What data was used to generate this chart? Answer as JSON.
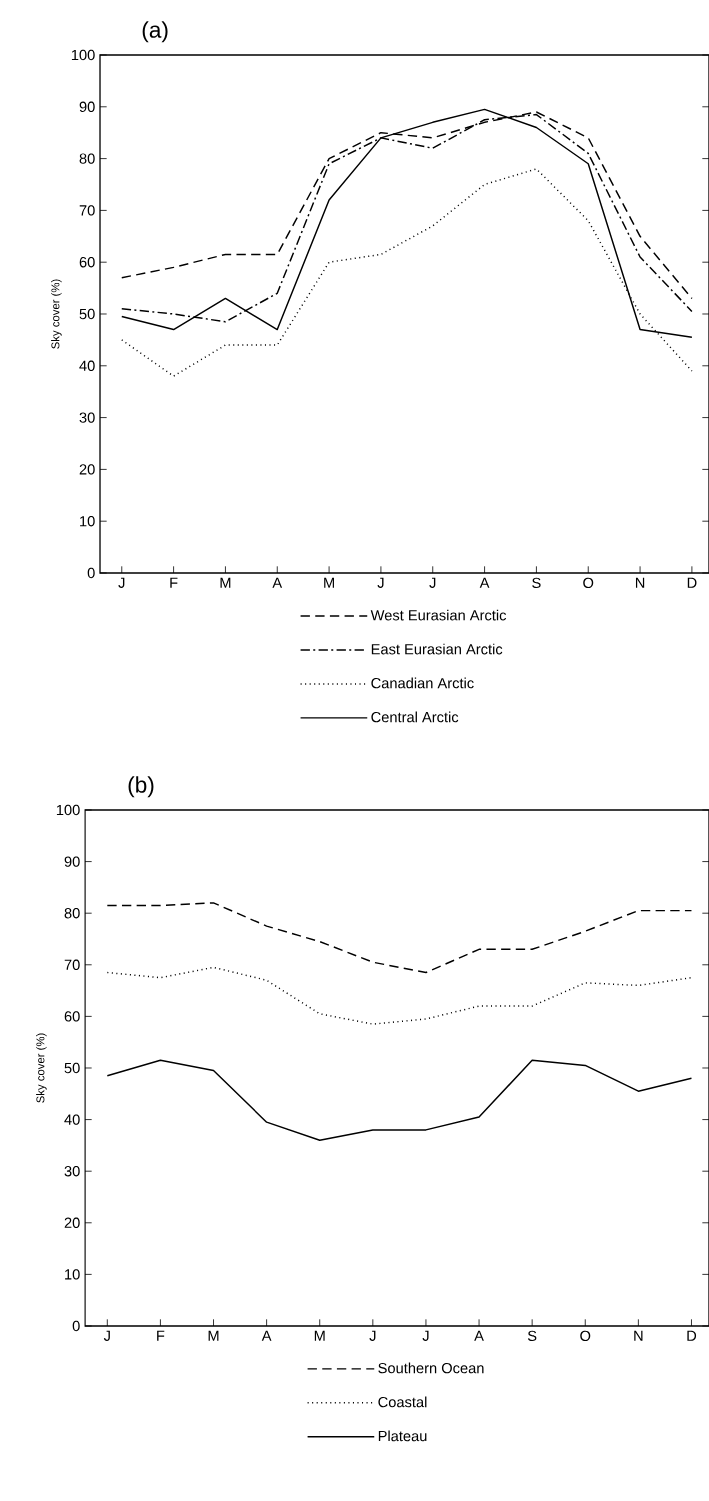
{
  "chart_data": [
    {
      "type": "line",
      "title": "(a)",
      "ylabel": "Sky cover (%)",
      "categories": [
        "J",
        "F",
        "M",
        "A",
        "M",
        "J",
        "J",
        "A",
        "S",
        "O",
        "N",
        "D"
      ],
      "ylim": [
        0,
        100
      ],
      "yticks": [
        0,
        10,
        20,
        30,
        40,
        50,
        60,
        70,
        80,
        90,
        100
      ],
      "grid": false,
      "legend": "bottom",
      "series": [
        {
          "name": "West Eurasian Arctic",
          "color": "#000000",
          "line_style": "dashed",
          "values": [
            57,
            59,
            61.5,
            61.5,
            80,
            85,
            84,
            87,
            89,
            84,
            65,
            53
          ]
        },
        {
          "name": "East Eurasian Arctic",
          "color": "#000000",
          "line_style": "dashdot",
          "values": [
            51,
            50,
            48.5,
            54,
            79,
            84,
            82,
            87.5,
            88.5,
            81,
            61,
            50.5
          ]
        },
        {
          "name": "Canadian Arctic",
          "color": "#000000",
          "line_style": "dotted",
          "values": [
            45,
            38,
            44,
            44,
            60,
            61.5,
            67,
            75,
            78,
            68,
            50,
            39
          ]
        },
        {
          "name": "Central Arctic",
          "color": "#000000",
          "line_style": "solid",
          "values": [
            49.5,
            47,
            53,
            47,
            72,
            84,
            87,
            89.5,
            86,
            79,
            47,
            45.5
          ]
        }
      ]
    },
    {
      "type": "line",
      "title": "(b)",
      "ylabel": "Sky cover (%)",
      "categories": [
        "J",
        "F",
        "M",
        "A",
        "M",
        "J",
        "J",
        "A",
        "S",
        "O",
        "N",
        "D"
      ],
      "ylim": [
        0,
        100
      ],
      "yticks": [
        0,
        10,
        20,
        30,
        40,
        50,
        60,
        70,
        80,
        90,
        100
      ],
      "grid": false,
      "legend": "bottom",
      "series": [
        {
          "name": "Southern Ocean",
          "color": "#000000",
          "line_style": "dashed",
          "values": [
            81.5,
            81.5,
            82,
            77.5,
            74.5,
            70.5,
            68.5,
            73,
            73,
            76.5,
            80.5,
            80.5
          ]
        },
        {
          "name": "Coastal",
          "color": "#000000",
          "line_style": "dotted",
          "values": [
            68.5,
            67.5,
            69.5,
            67,
            60.5,
            58.5,
            59.5,
            62,
            62,
            66.5,
            66,
            67.5
          ]
        },
        {
          "name": "Plateau",
          "color": "#000000",
          "line_style": "solid",
          "values": [
            48.5,
            51.5,
            49.5,
            39.5,
            36,
            38,
            38,
            40.5,
            51.5,
            50.5,
            45.5,
            48
          ]
        }
      ]
    }
  ]
}
